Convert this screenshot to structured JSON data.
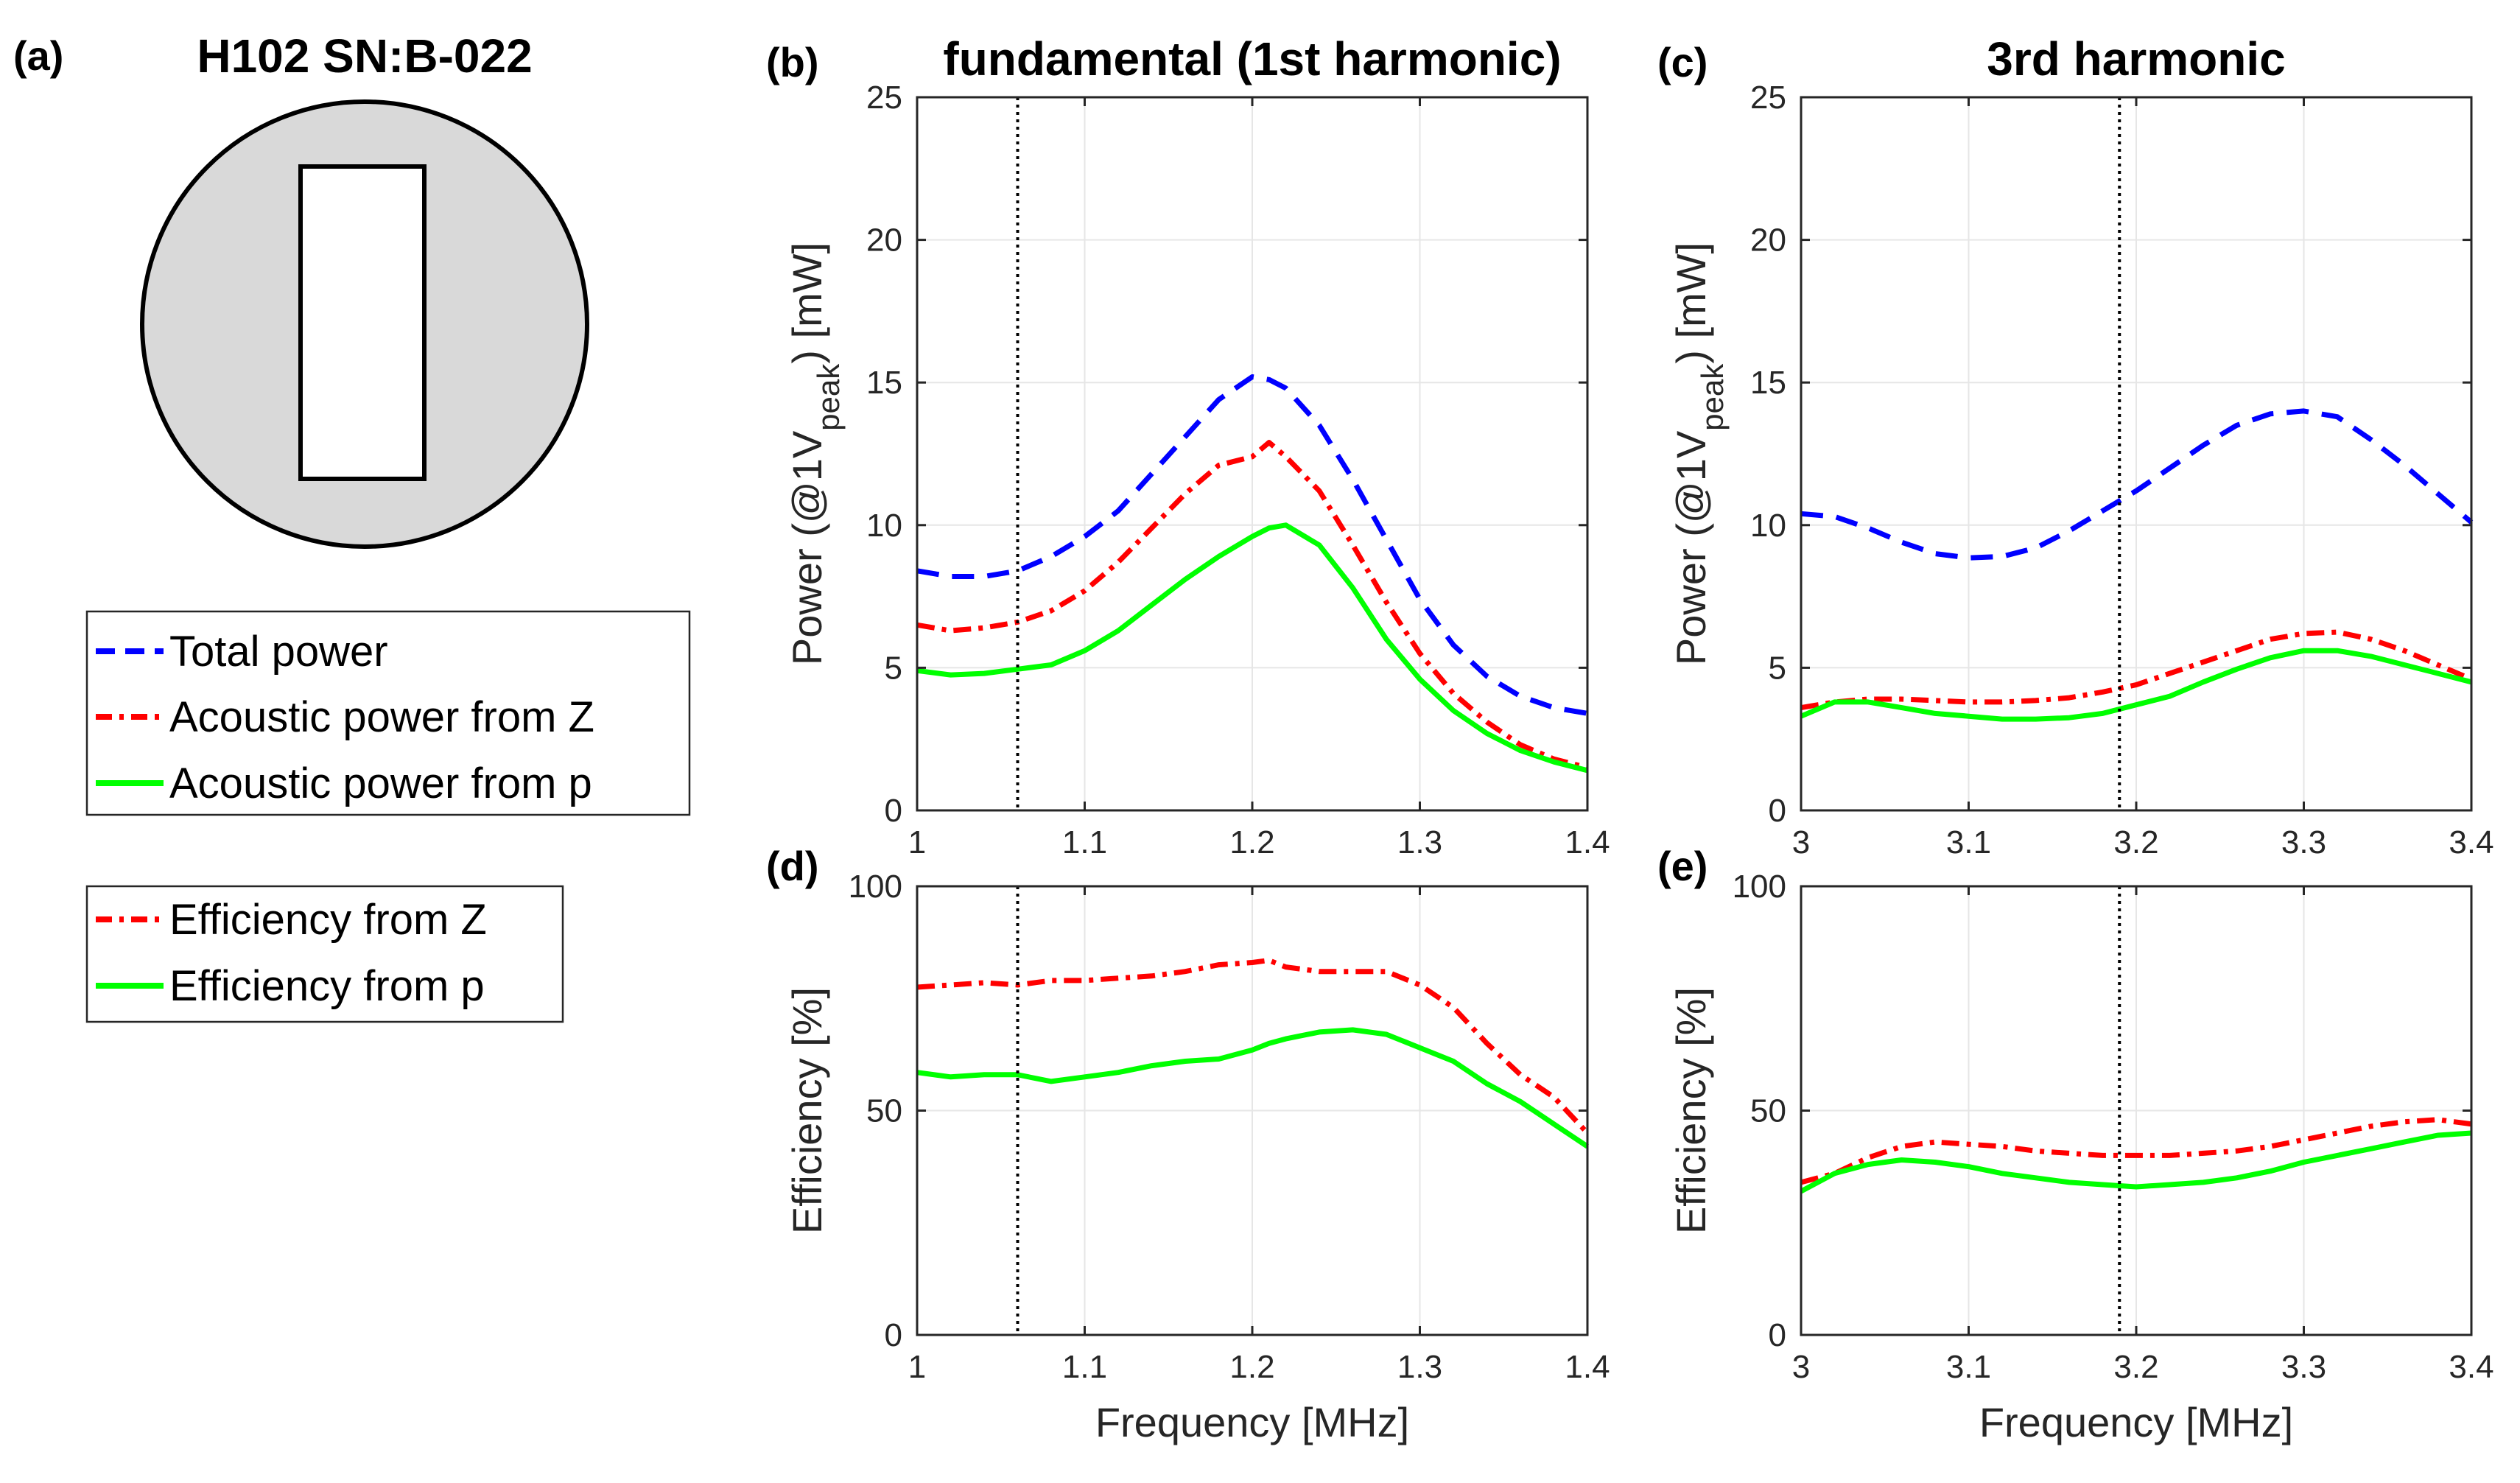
{
  "figure": {
    "panel_a_label": "(a)",
    "panel_a_title": "H102 SN:B-022",
    "legend_power": [
      {
        "label": "Total power",
        "color": "#0000ff",
        "style": "dashed"
      },
      {
        "label": "Acoustic power from Z",
        "color": "#ff0000",
        "style": "dashdot"
      },
      {
        "label": "Acoustic power from p",
        "color": "#00ff00",
        "style": "solid"
      }
    ],
    "legend_efficiency": [
      {
        "label": "Efficiency from Z",
        "color": "#ff0000",
        "style": "dashdot"
      },
      {
        "label": "Efficiency from p",
        "color": "#00ff00",
        "style": "solid"
      }
    ]
  },
  "chart_data": [
    {
      "id": "b",
      "panel_label": "(b)",
      "type": "line",
      "title": "fundamental (1st harmonic)",
      "xlabel": "",
      "ylabel": "Power (@1V_peak) [mW]",
      "ylabel_parts": [
        "Power (@1V",
        "peak",
        ") [mW]"
      ],
      "xlim": [
        1,
        1.4
      ],
      "ylim": [
        0,
        25
      ],
      "grid": true,
      "xticks": [
        1,
        1.1,
        1.2,
        1.3,
        1.4
      ],
      "xtick_labels": [
        "1",
        "1.1",
        "1.2",
        "1.3",
        "1.4"
      ],
      "yticks": [
        0,
        5,
        10,
        15,
        20,
        25
      ],
      "ytick_labels": [
        "0",
        "5",
        "10",
        "15",
        "20",
        "25"
      ],
      "vline": 1.06,
      "x": [
        1.0,
        1.02,
        1.04,
        1.06,
        1.08,
        1.1,
        1.12,
        1.14,
        1.16,
        1.18,
        1.2,
        1.21,
        1.22,
        1.24,
        1.26,
        1.28,
        1.3,
        1.32,
        1.34,
        1.36,
        1.38,
        1.4
      ],
      "series": [
        {
          "name": "Total power",
          "color": "#0000ff",
          "style": "dashed",
          "values": [
            8.4,
            8.2,
            8.2,
            8.4,
            8.9,
            9.6,
            10.5,
            11.8,
            13.1,
            14.4,
            15.2,
            15.1,
            14.8,
            13.5,
            11.6,
            9.5,
            7.4,
            5.8,
            4.7,
            4.0,
            3.6,
            3.4
          ]
        },
        {
          "name": "Acoustic power from Z",
          "color": "#ff0000",
          "style": "dashdot",
          "values": [
            6.5,
            6.3,
            6.4,
            6.6,
            7.0,
            7.7,
            8.7,
            9.9,
            11.1,
            12.1,
            12.4,
            12.9,
            12.4,
            11.2,
            9.3,
            7.3,
            5.5,
            4.1,
            3.1,
            2.3,
            1.8,
            1.5
          ]
        },
        {
          "name": "Acoustic power from p",
          "color": "#00ff00",
          "style": "solid",
          "values": [
            4.9,
            4.75,
            4.8,
            4.95,
            5.1,
            5.6,
            6.3,
            7.2,
            8.1,
            8.9,
            9.6,
            9.9,
            10.0,
            9.3,
            7.8,
            6.0,
            4.6,
            3.5,
            2.7,
            2.1,
            1.7,
            1.4
          ]
        }
      ]
    },
    {
      "id": "c",
      "panel_label": "(c)",
      "type": "line",
      "title": "3rd harmonic",
      "xlabel": "",
      "ylabel": "Power (@1V_peak) [mW]",
      "ylabel_parts": [
        "Power (@1V",
        "peak",
        ") [mW]"
      ],
      "xlim": [
        3,
        3.4
      ],
      "ylim": [
        0,
        25
      ],
      "grid": true,
      "xticks": [
        3,
        3.1,
        3.2,
        3.3,
        3.4
      ],
      "xtick_labels": [
        "3",
        "3.1",
        "3.2",
        "3.3",
        "3.4"
      ],
      "yticks": [
        0,
        5,
        10,
        15,
        20,
        25
      ],
      "ytick_labels": [
        "0",
        "5",
        "10",
        "15",
        "20",
        "25"
      ],
      "vline": 3.19,
      "x": [
        3.0,
        3.02,
        3.04,
        3.06,
        3.08,
        3.1,
        3.12,
        3.14,
        3.16,
        3.18,
        3.2,
        3.22,
        3.24,
        3.26,
        3.28,
        3.3,
        3.32,
        3.34,
        3.36,
        3.38,
        3.4
      ],
      "series": [
        {
          "name": "Total power",
          "color": "#0000ff",
          "style": "dashed",
          "values": [
            10.4,
            10.3,
            9.9,
            9.4,
            9.0,
            8.85,
            8.9,
            9.2,
            9.8,
            10.5,
            11.2,
            12.0,
            12.8,
            13.5,
            13.9,
            14.0,
            13.8,
            13.0,
            12.1,
            11.1,
            10.1
          ]
        },
        {
          "name": "Acoustic power from Z",
          "color": "#ff0000",
          "style": "dashdot",
          "values": [
            3.6,
            3.8,
            3.9,
            3.9,
            3.85,
            3.8,
            3.8,
            3.85,
            3.95,
            4.15,
            4.4,
            4.8,
            5.2,
            5.6,
            6.0,
            6.2,
            6.25,
            6.0,
            5.6,
            5.1,
            4.6
          ]
        },
        {
          "name": "Acoustic power from p",
          "color": "#00ff00",
          "style": "solid",
          "values": [
            3.3,
            3.8,
            3.8,
            3.6,
            3.4,
            3.3,
            3.2,
            3.2,
            3.25,
            3.4,
            3.7,
            4.0,
            4.5,
            4.95,
            5.35,
            5.6,
            5.6,
            5.4,
            5.1,
            4.8,
            4.5
          ]
        }
      ]
    },
    {
      "id": "d",
      "panel_label": "(d)",
      "type": "line",
      "title": "",
      "xlabel": "Frequency [MHz]",
      "ylabel": "Efficiency [%]",
      "xlim": [
        1,
        1.4
      ],
      "ylim": [
        0,
        100
      ],
      "grid": true,
      "xticks": [
        1,
        1.1,
        1.2,
        1.3,
        1.4
      ],
      "xtick_labels": [
        "1",
        "1.1",
        "1.2",
        "1.3",
        "1.4"
      ],
      "yticks": [
        0,
        50,
        100
      ],
      "ytick_labels": [
        "0",
        "50",
        "100"
      ],
      "vline": 1.06,
      "x": [
        1.0,
        1.02,
        1.04,
        1.06,
        1.08,
        1.1,
        1.12,
        1.14,
        1.16,
        1.18,
        1.2,
        1.21,
        1.22,
        1.24,
        1.26,
        1.28,
        1.3,
        1.32,
        1.34,
        1.36,
        1.38,
        1.4
      ],
      "series": [
        {
          "name": "Efficiency from Z",
          "color": "#ff0000",
          "style": "dashdot",
          "values": [
            77.5,
            78,
            78.5,
            78,
            79,
            79,
            79.5,
            80,
            81,
            82.5,
            83,
            83.5,
            82,
            81,
            81,
            81,
            78,
            73,
            65,
            58,
            53,
            45
          ]
        },
        {
          "name": "Efficiency from p",
          "color": "#00ff00",
          "style": "solid",
          "values": [
            58.5,
            57.5,
            58,
            58,
            56.5,
            57.5,
            58.5,
            60,
            61,
            61.5,
            63.5,
            65,
            66,
            67.5,
            68,
            67,
            64,
            61,
            56,
            52,
            47,
            42
          ]
        }
      ]
    },
    {
      "id": "e",
      "panel_label": "(e)",
      "type": "line",
      "title": "",
      "xlabel": "Frequency [MHz]",
      "ylabel": "Efficiency [%]",
      "xlim": [
        3,
        3.4
      ],
      "ylim": [
        0,
        100
      ],
      "grid": true,
      "xticks": [
        3,
        3.1,
        3.2,
        3.3,
        3.4
      ],
      "xtick_labels": [
        "3",
        "3.1",
        "3.2",
        "3.3",
        "3.4"
      ],
      "yticks": [
        0,
        50,
        100
      ],
      "ytick_labels": [
        "0",
        "50",
        "100"
      ],
      "vline": 3.19,
      "x": [
        3.0,
        3.02,
        3.04,
        3.06,
        3.08,
        3.1,
        3.12,
        3.14,
        3.16,
        3.18,
        3.2,
        3.22,
        3.24,
        3.26,
        3.28,
        3.3,
        3.32,
        3.34,
        3.36,
        3.38,
        3.4
      ],
      "series": [
        {
          "name": "Efficiency from Z",
          "color": "#ff0000",
          "style": "dashdot",
          "values": [
            34,
            36,
            39.5,
            42,
            43,
            42.5,
            42,
            41,
            40.5,
            40,
            40,
            40,
            40.5,
            41,
            42,
            43.5,
            45,
            46.5,
            47.5,
            48,
            47
          ]
        },
        {
          "name": "Efficiency from p",
          "color": "#00ff00",
          "style": "solid",
          "values": [
            32,
            36,
            38,
            39,
            38.5,
            37.5,
            36,
            35,
            34,
            33.5,
            33,
            33.5,
            34,
            35,
            36.5,
            38.5,
            40,
            41.5,
            43,
            44.5,
            45
          ]
        }
      ]
    }
  ]
}
